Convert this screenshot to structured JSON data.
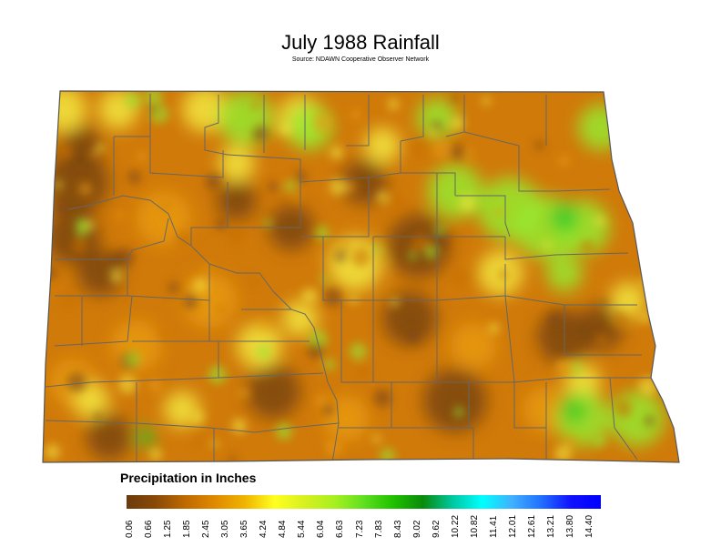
{
  "title": "July 1988 Rainfall",
  "subtitle": "Source: NDAWN Cooperative Observer Network",
  "legend": {
    "title": "Precipitation in Inches",
    "ticks": [
      "0.06",
      "0.66",
      "1.25",
      "1.85",
      "2.45",
      "3.05",
      "3.65",
      "4.24",
      "4.84",
      "5.44",
      "6.04",
      "6.63",
      "7.23",
      "7.83",
      "8.43",
      "9.02",
      "9.62",
      "10.22",
      "10.82",
      "11.41",
      "12.01",
      "12.61",
      "13.21",
      "13.80",
      "14.40"
    ],
    "colors": [
      "#6b3a0a",
      "#8a4a08",
      "#c06a00",
      "#e08a00",
      "#f0b400",
      "#ffff20",
      "#d8f020",
      "#a8f020",
      "#60e020",
      "#20c000",
      "#0a8a0a",
      "#00c8a0",
      "#00ffff",
      "#40b0ff",
      "#2070ff",
      "#1010ff",
      "#0000ff"
    ]
  },
  "map_colors": {
    "dry_dark": "#7a4510",
    "dry": "#c8700a",
    "medium": "#e89a10",
    "moist": "#f2e640",
    "wet": "#98e830",
    "very_wet": "#28c828",
    "county_lines": "#666666"
  }
}
